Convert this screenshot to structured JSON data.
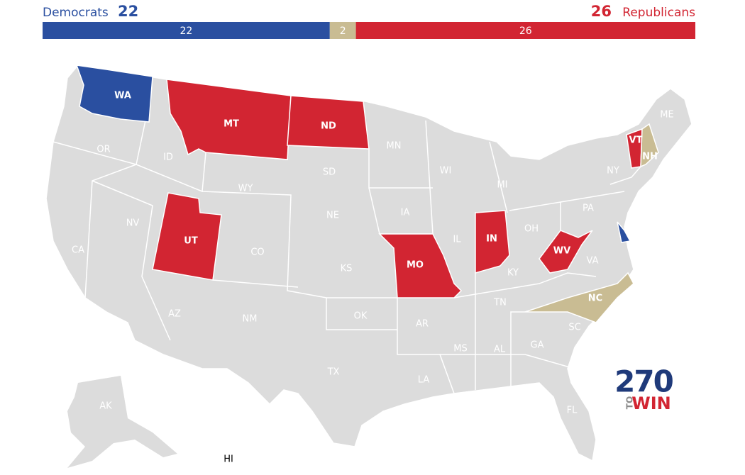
{
  "header": {
    "dem_label": "Democrats",
    "dem_count": 22,
    "tossup_count": 2,
    "rep_count": 26,
    "rep_label": "Republicans"
  },
  "colors": {
    "dem": "#2a4fa0",
    "rep": "#d22532",
    "tossup": "#c9bc93",
    "none": "#dcdcdc"
  },
  "states": [
    {
      "label": "WA",
      "status": "dem"
    },
    {
      "label": "OR",
      "status": "none"
    },
    {
      "label": "CA",
      "status": "none"
    },
    {
      "label": "NV",
      "status": "none"
    },
    {
      "label": "ID",
      "status": "none"
    },
    {
      "label": "MT",
      "status": "rep"
    },
    {
      "label": "WY",
      "status": "none"
    },
    {
      "label": "UT",
      "status": "rep"
    },
    {
      "label": "AZ",
      "status": "none"
    },
    {
      "label": "CO",
      "status": "none"
    },
    {
      "label": "NM",
      "status": "none"
    },
    {
      "label": "ND",
      "status": "rep"
    },
    {
      "label": "SD",
      "status": "none"
    },
    {
      "label": "NE",
      "status": "none"
    },
    {
      "label": "KS",
      "status": "none"
    },
    {
      "label": "OK",
      "status": "none"
    },
    {
      "label": "TX",
      "status": "none"
    },
    {
      "label": "MN",
      "status": "none"
    },
    {
      "label": "IA",
      "status": "none"
    },
    {
      "label": "MO",
      "status": "rep"
    },
    {
      "label": "AR",
      "status": "none"
    },
    {
      "label": "LA",
      "status": "none"
    },
    {
      "label": "WI",
      "status": "none"
    },
    {
      "label": "IL",
      "status": "none"
    },
    {
      "label": "MI",
      "status": "none"
    },
    {
      "label": "IN",
      "status": "rep"
    },
    {
      "label": "OH",
      "status": "none"
    },
    {
      "label": "KY",
      "status": "none"
    },
    {
      "label": "TN",
      "status": "none"
    },
    {
      "label": "MS",
      "status": "none"
    },
    {
      "label": "AL",
      "status": "none"
    },
    {
      "label": "GA",
      "status": "none"
    },
    {
      "label": "FL",
      "status": "none"
    },
    {
      "label": "SC",
      "status": "none"
    },
    {
      "label": "NC",
      "status": "tossup"
    },
    {
      "label": "VA",
      "status": "none"
    },
    {
      "label": "WV",
      "status": "rep"
    },
    {
      "label": "PA",
      "status": "none"
    },
    {
      "label": "NY",
      "status": "none"
    },
    {
      "label": "VT",
      "status": "rep"
    },
    {
      "label": "NH",
      "status": "tossup"
    },
    {
      "label": "ME",
      "status": "none"
    },
    {
      "label": "AK",
      "status": "none"
    },
    {
      "label": "HI",
      "status": "none"
    },
    {
      "status": "dem"
    }
  ],
  "logo": {
    "number": "270",
    "to": "TO",
    "win": "WIN"
  }
}
